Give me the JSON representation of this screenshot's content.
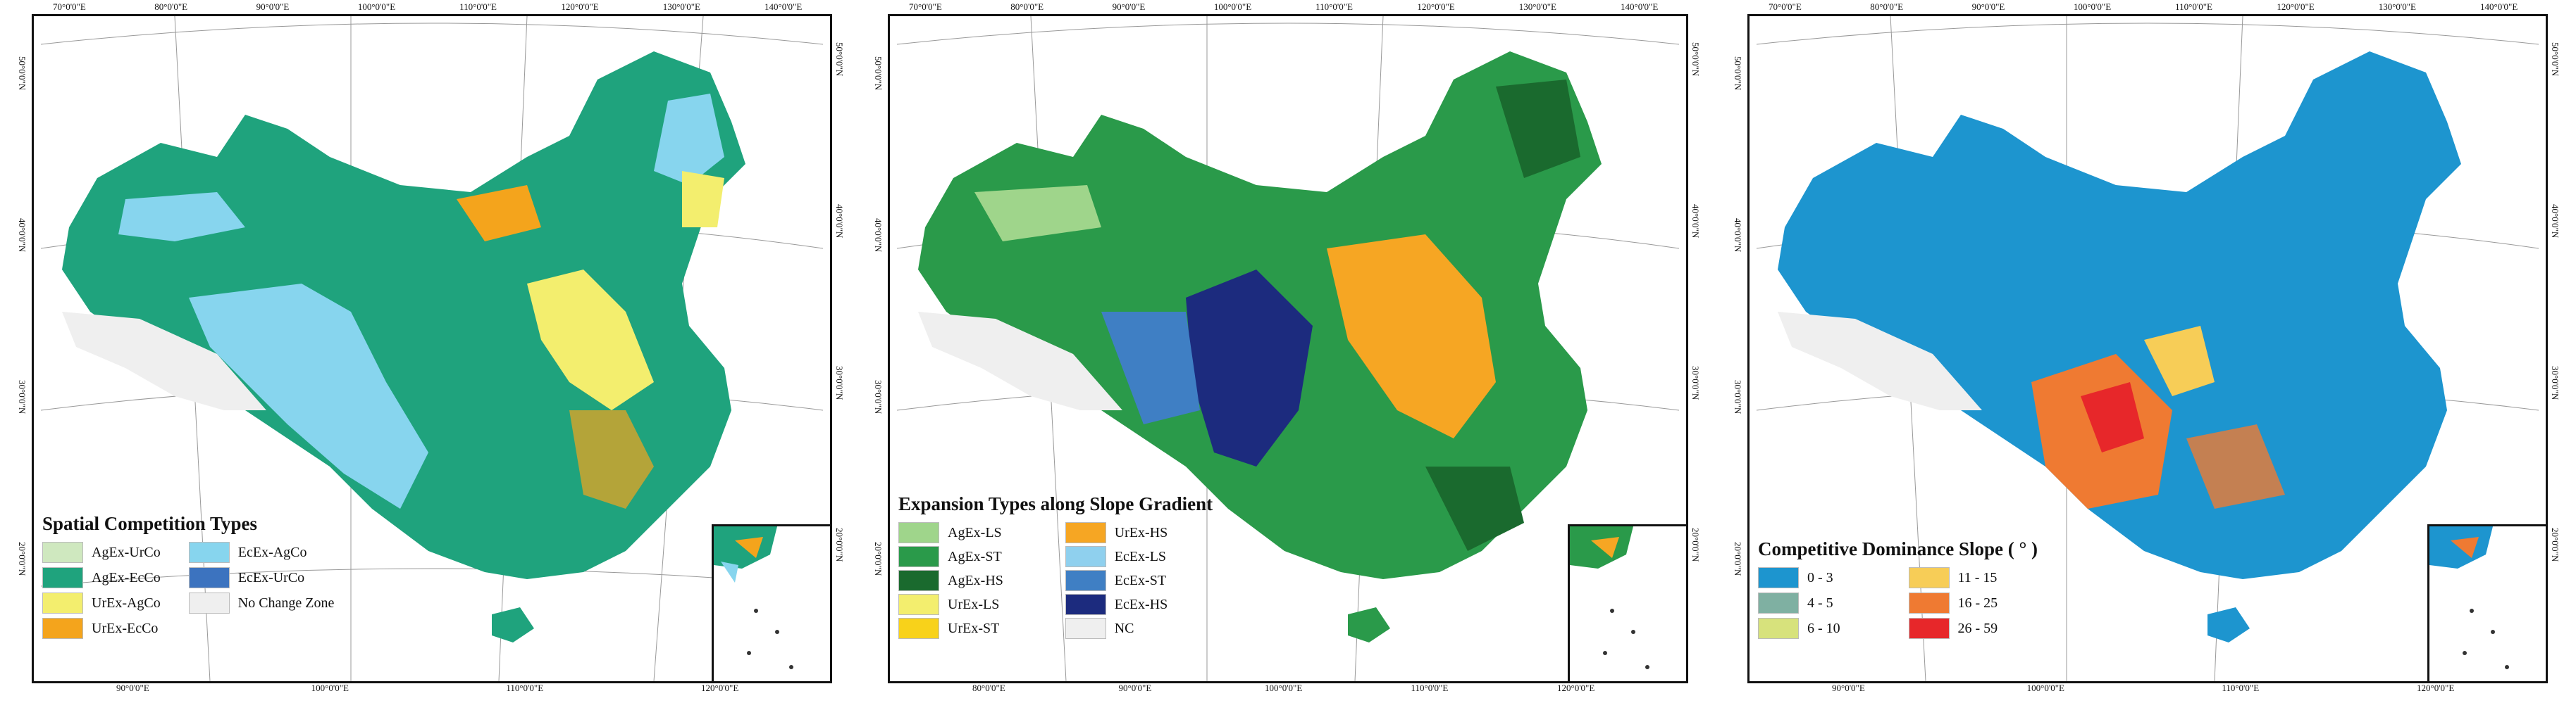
{
  "colors": {
    "panel_a": [
      "#cfe8bf",
      "#1fa37d",
      "#f3ee6e",
      "#f4a41c",
      "#87d5ee",
      "#3c73bf",
      "#efefef"
    ],
    "panel_b": [
      "#9fd58b",
      "#2a9a4a",
      "#1a6a2e",
      "#f3ee6e",
      "#f8d21a",
      "#f6a623",
      "#8fd0ee",
      "#3f7fc4",
      "#1c2b7e",
      "#efefef"
    ],
    "panel_c": [
      "#1d95cf",
      "#7fb0a2",
      "#d7e27c",
      "#f7cd57",
      "#ef7a32",
      "#e7272a"
    ]
  },
  "panel_a": {
    "legend_title": "Spatial Competition Types",
    "legend": [
      "AgEx-UrCo",
      "AgEx-EcCo",
      "UrEx-AgCo",
      "UrEx-EcCo",
      "EcEx-AgCo",
      "EcEx-UrCo",
      "No Change Zone"
    ],
    "ticks_top": [
      "70°0'0\"E",
      "80°0'0\"E",
      "90°0'0\"E",
      "100°0'0\"E",
      "110°0'0\"E",
      "120°0'0\"E",
      "130°0'0\"E",
      "140°0'0\"E"
    ],
    "ticks_bottom": [
      "90°0'0\"E",
      "100°0'0\"E",
      "110°0'0\"E",
      "120°0'0\"E"
    ],
    "ticks_left": [
      "50°0'0\"N",
      "40°0'0\"N",
      "30°0'0\"N",
      "20°0'0\"N"
    ],
    "ticks_right": [
      "50°0'0\"N",
      "40°0'0\"N",
      "30°0'0\"N",
      "20°0'0\"N"
    ]
  },
  "panel_b": {
    "legend_title": "Expansion Types along Slope Gradient",
    "legend": [
      "AgEx-LS",
      "AgEx-ST",
      "AgEx-HS",
      "UrEx-LS",
      "UrEx-ST",
      "UrEx-HS",
      "EcEx-LS",
      "EcEx-ST",
      "EcEx-HS",
      "NC"
    ],
    "ticks_top": [
      "70°0'0\"E",
      "80°0'0\"E",
      "90°0'0\"E",
      "100°0'0\"E",
      "110°0'0\"E",
      "120°0'0\"E",
      "130°0'0\"E",
      "140°0'0\"E"
    ],
    "ticks_bottom": [
      "80°0'0\"E",
      "90°0'0\"E",
      "100°0'0\"E",
      "110°0'0\"E",
      "120°0'0\"E"
    ],
    "ticks_left": [
      "50°0'0\"N",
      "40°0'0\"N",
      "30°0'0\"N",
      "20°0'0\"N"
    ],
    "ticks_right": [
      "50°0'0\"N",
      "40°0'0\"N",
      "30°0'0\"N",
      "20°0'0\"N"
    ]
  },
  "panel_c": {
    "legend_title": "Competitive Dominance Slope ( ° )",
    "legend": [
      "0 - 3",
      "4 - 5",
      "6 - 10",
      "11 - 15",
      "16 - 25",
      "26 - 59"
    ],
    "ticks_top": [
      "70°0'0\"E",
      "80°0'0\"E",
      "90°0'0\"E",
      "100°0'0\"E",
      "110°0'0\"E",
      "120°0'0\"E",
      "130°0'0\"E",
      "140°0'0\"E"
    ],
    "ticks_bottom": [
      "90°0'0\"E",
      "100°0'0\"E",
      "110°0'0\"E",
      "120°0'0\"E"
    ],
    "ticks_left": [
      "50°0'0\"N",
      "40°0'0\"N",
      "30°0'0\"N",
      "20°0'0\"N"
    ],
    "ticks_right": [
      "50°0'0\"N",
      "40°0'0\"N",
      "30°0'0\"N",
      "20°0'0\"N"
    ]
  }
}
